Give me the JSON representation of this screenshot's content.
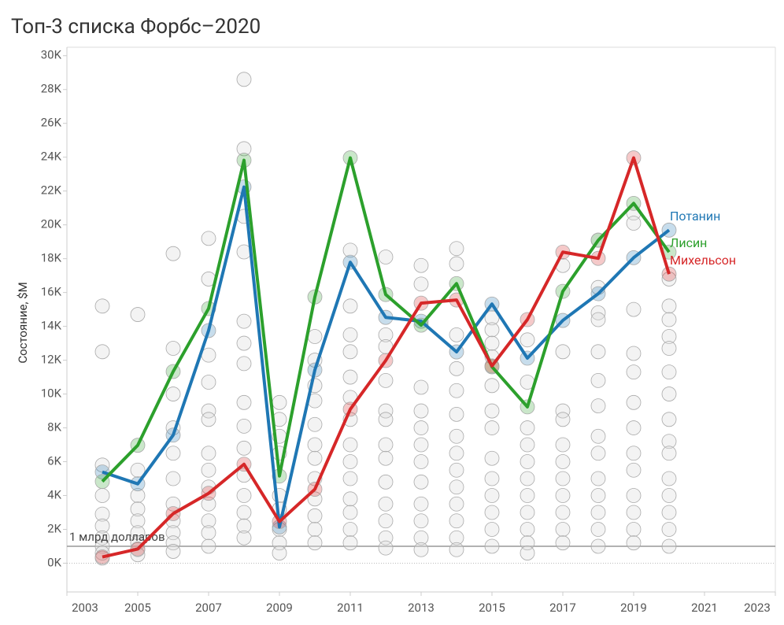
{
  "chart_data": {
    "type": "line",
    "title": "Топ-3 списка Форбс–2020",
    "y_label": "Состояние, $M",
    "x": [
      2004,
      2005,
      2006,
      2007,
      2008,
      2009,
      2010,
      2011,
      2012,
      2013,
      2014,
      2015,
      2016,
      2017,
      2018,
      2019,
      2020
    ],
    "series": [
      {
        "name": "Потанин",
        "color": "#1f77b4",
        "values": [
          5390,
          4690,
          7570,
          13750,
          22240,
          2140,
          11420,
          17790,
          14530,
          14300,
          12490,
          15320,
          12120,
          14350,
          15930,
          18060,
          19690
        ]
      },
      {
        "name": "Лисин",
        "color": "#2ca02c",
        "values": [
          4830,
          6970,
          11330,
          15050,
          23820,
          5150,
          15740,
          23960,
          15880,
          14070,
          16530,
          11610,
          9240,
          16070,
          19090,
          21270,
          18390
        ]
      },
      {
        "name": "Михельсон",
        "color": "#d62728",
        "values": [
          370,
          840,
          2930,
          4130,
          5850,
          2460,
          4370,
          9100,
          11980,
          15370,
          15560,
          11660,
          14400,
          18390,
          18020,
          23960,
          17090
        ]
      }
    ],
    "background_points": [
      [
        15200,
        12500,
        5800,
        4000,
        2900,
        2200,
        1500,
        1000,
        600,
        300
      ],
      [
        14700,
        5500,
        4000,
        3200,
        2500,
        1800,
        1200,
        800,
        500
      ],
      [
        18300,
        12700,
        10000,
        8000,
        6500,
        5000,
        3500,
        2500,
        1800,
        1200,
        700
      ],
      [
        19200,
        16800,
        12300,
        10700,
        9000,
        8500,
        6500,
        5500,
        4500,
        3500,
        2500,
        1800,
        1000
      ],
      [
        28600,
        24500,
        20500,
        18400,
        14300,
        13000,
        11800,
        9500,
        8100,
        6800,
        5200,
        4000,
        3000,
        2200,
        1500
      ],
      [
        9500,
        8500,
        7500,
        6500,
        4000,
        3200,
        2000,
        1200,
        600
      ],
      [
        13400,
        12000,
        10500,
        9600,
        8200,
        7000,
        6200,
        5000,
        3800,
        2800,
        2000,
        1200
      ],
      [
        18500,
        15200,
        13500,
        12500,
        11000,
        9800,
        8500,
        7000,
        6000,
        5000,
        3800,
        3000,
        2000,
        1200
      ],
      [
        18100,
        13500,
        12800,
        10800,
        9000,
        8500,
        7000,
        6200,
        4800,
        3500,
        2500,
        1500,
        900
      ],
      [
        17600,
        16500,
        10400,
        9000,
        8000,
        7000,
        6000,
        4800,
        3500,
        2500,
        1500,
        800
      ],
      [
        18600,
        17700,
        13500,
        11500,
        10200,
        8800,
        7500,
        6500,
        5500,
        4500,
        3500,
        2500,
        1500,
        800
      ],
      [
        14500,
        13800,
        13000,
        12200,
        10500,
        9000,
        8000,
        6200,
        5000,
        4000,
        3000,
        2000,
        1000
      ],
      [
        13200,
        10700,
        8000,
        7000,
        6000,
        5000,
        4000,
        3000,
        2000,
        1200,
        600
      ],
      [
        17600,
        12500,
        9000,
        8500,
        7000,
        6000,
        5000,
        4000,
        3000,
        2000,
        1200
      ],
      [
        19100,
        16300,
        14800,
        14400,
        12500,
        10800,
        9300,
        7500,
        6500,
        5000,
        4000,
        3000,
        2000,
        1000
      ],
      [
        20700,
        20100,
        15000,
        12400,
        11300,
        9500,
        8000,
        6500,
        5500,
        4000,
        3000,
        2000,
        1200
      ],
      [
        16800,
        15200,
        14400,
        13400,
        12700,
        11300,
        10000,
        8500,
        7200,
        6500,
        5000,
        4000,
        3000,
        2000,
        1000
      ]
    ],
    "reference_line": {
      "value": 1000,
      "label": "1 млрд долларов"
    },
    "xlim": [
      2003,
      2023
    ],
    "xticks": [
      2003,
      2005,
      2007,
      2009,
      2011,
      2013,
      2015,
      2017,
      2019,
      2021,
      2023
    ],
    "ylim": [
      -1700,
      30500
    ],
    "yticks": [
      {
        "value": 0,
        "label": "0K"
      },
      {
        "value": 2000,
        "label": "2K"
      },
      {
        "value": 4000,
        "label": "4K"
      },
      {
        "value": 6000,
        "label": "6K"
      },
      {
        "value": 8000,
        "label": "8K"
      },
      {
        "value": 10000,
        "label": "10K"
      },
      {
        "value": 12000,
        "label": "12K"
      },
      {
        "value": 14000,
        "label": "14K"
      },
      {
        "value": 16000,
        "label": "16K"
      },
      {
        "value": 18000,
        "label": "18K"
      },
      {
        "value": 20000,
        "label": "20K"
      },
      {
        "value": 22000,
        "label": "22K"
      },
      {
        "value": 24000,
        "label": "24K"
      },
      {
        "value": 26000,
        "label": "26K"
      },
      {
        "value": 28000,
        "label": "28K"
      },
      {
        "value": 30000,
        "label": "30K"
      }
    ],
    "grid": false
  }
}
